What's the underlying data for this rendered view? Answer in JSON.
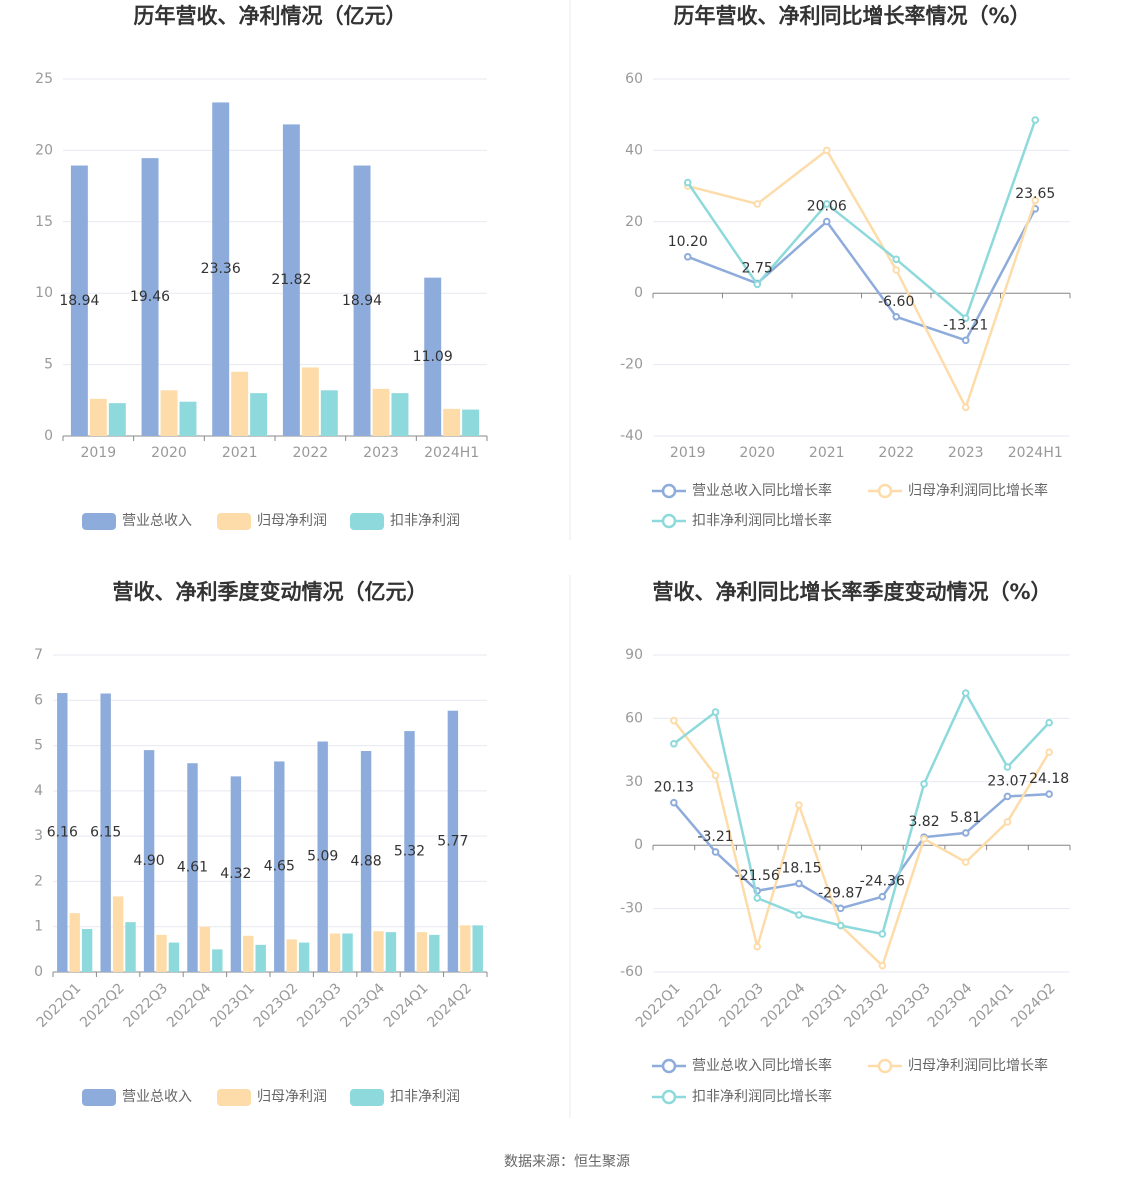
{
  "chart_data": [
    {
      "type": "bar",
      "title": "历年营收、净利情况（亿元）",
      "categories": [
        "2019",
        "2020",
        "2021",
        "2022",
        "2023",
        "2024H1"
      ],
      "series": [
        {
          "name": "营业总收入",
          "color": "#8eacdb",
          "values": [
            18.94,
            19.46,
            23.36,
            21.82,
            18.94,
            11.09
          ],
          "show_labels": true
        },
        {
          "name": "归母净利润",
          "color": "#fddcaa",
          "values": [
            2.6,
            3.2,
            4.5,
            4.8,
            3.3,
            1.9
          ]
        },
        {
          "name": "扣非净利润",
          "color": "#8dd9dc",
          "values": [
            2.3,
            2.4,
            3.0,
            3.2,
            3.0,
            1.85
          ]
        }
      ],
      "ylim": [
        0,
        25
      ],
      "yticks": [
        0,
        5,
        10,
        15,
        20,
        25
      ],
      "grid": true
    },
    {
      "type": "line",
      "title": "历年营收、净利同比增长率情况（%）",
      "categories": [
        "2019",
        "2020",
        "2021",
        "2022",
        "2023",
        "2024H1"
      ],
      "series": [
        {
          "name": "营业总收入同比增长率",
          "color": "#8eacdb",
          "values": [
            10.2,
            2.75,
            20.06,
            -6.6,
            -13.21,
            23.65
          ],
          "value_labels": [
            "10.20",
            "2.75",
            "20.06",
            "-6.60",
            "-13.21",
            "23.65"
          ],
          "show_labels": true
        },
        {
          "name": "归母净利润同比增长率",
          "color": "#fddcaa",
          "values": [
            30,
            25,
            40,
            6.5,
            -32,
            26
          ]
        },
        {
          "name": "扣非净利润同比增长率",
          "color": "#8dd9dc",
          "values": [
            31,
            2.5,
            25,
            9.5,
            -7,
            48.5
          ]
        }
      ],
      "ylim": [
        -40,
        60
      ],
      "yticks": [
        -40,
        -20,
        0,
        20,
        40,
        60
      ],
      "grid": true
    },
    {
      "type": "bar",
      "title": "营收、净利季度变动情况（亿元）",
      "categories": [
        "2022Q1",
        "2022Q2",
        "2022Q3",
        "2022Q4",
        "2023Q1",
        "2023Q2",
        "2023Q3",
        "2023Q4",
        "2024Q1",
        "2024Q2"
      ],
      "series": [
        {
          "name": "营业总收入",
          "color": "#8eacdb",
          "values": [
            6.16,
            6.15,
            4.9,
            4.61,
            4.32,
            4.65,
            5.09,
            4.88,
            5.32,
            5.77
          ],
          "value_labels": [
            "6.16",
            "6.15",
            "4.90",
            "4.61",
            "4.32",
            "4.65",
            "5.09",
            "4.88",
            "5.32",
            "5.77"
          ],
          "show_labels": true
        },
        {
          "name": "归母净利润",
          "color": "#fddcaa",
          "values": [
            1.3,
            1.67,
            0.82,
            1.0,
            0.8,
            0.72,
            0.85,
            0.9,
            0.88,
            1.03
          ]
        },
        {
          "name": "扣非净利润",
          "color": "#8dd9dc",
          "values": [
            0.95,
            1.1,
            0.65,
            0.5,
            0.6,
            0.65,
            0.85,
            0.88,
            0.82,
            1.03
          ]
        }
      ],
      "ylim": [
        0,
        7
      ],
      "yticks": [
        0,
        1,
        2,
        3,
        4,
        5,
        6,
        7
      ],
      "grid": true
    },
    {
      "type": "line",
      "title": "营收、净利同比增长率季度变动情况（%）",
      "categories": [
        "2022Q1",
        "2022Q2",
        "2022Q3",
        "2022Q4",
        "2023Q1",
        "2023Q2",
        "2023Q3",
        "2023Q4",
        "2024Q1",
        "2024Q2"
      ],
      "series": [
        {
          "name": "营业总收入同比增长率",
          "color": "#8eacdb",
          "values": [
            20.13,
            -3.21,
            -21.56,
            -18.15,
            -29.87,
            -24.36,
            3.82,
            5.81,
            23.07,
            24.18
          ],
          "value_labels": [
            "20.13",
            "-3.21",
            "-21.56",
            "-18.15",
            "-29.87",
            "-24.36",
            "3.82",
            "5.81",
            "23.07",
            "24.18"
          ],
          "show_labels": true
        },
        {
          "name": "归母净利润同比增长率",
          "color": "#fddcaa",
          "values": [
            59,
            33,
            -48,
            19,
            -38,
            -57,
            3,
            -8,
            11,
            44
          ]
        },
        {
          "name": "扣非净利润同比增长率",
          "color": "#8dd9dc",
          "values": [
            48,
            63,
            -25,
            -33,
            -38,
            -42,
            29,
            72,
            37,
            58
          ]
        }
      ],
      "ylim": [
        -60,
        90
      ],
      "yticks": [
        -60,
        -30,
        0,
        30,
        60,
        90
      ],
      "grid": true
    }
  ],
  "source": "数据来源：恒生聚源"
}
